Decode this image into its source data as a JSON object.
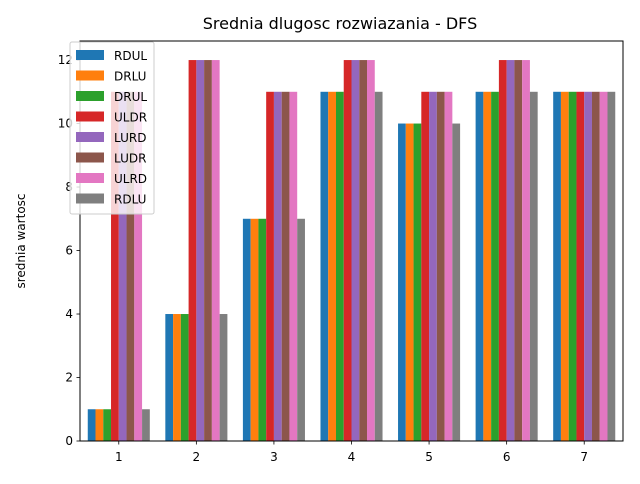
{
  "chart_data": {
    "type": "bar",
    "title": "Srednia dlugosc rozwiazania - DFS",
    "xlabel": "",
    "ylabel": "srednia wartosc",
    "categories": [
      "1",
      "2",
      "3",
      "4",
      "5",
      "6",
      "7"
    ],
    "ylim": [
      0,
      12.6
    ],
    "yticks": [
      0,
      2,
      4,
      6,
      8,
      10,
      12
    ],
    "grid": false,
    "legend_position": "top-left",
    "series": [
      {
        "name": "RDUL",
        "color": "#1f77b4",
        "values": [
          1,
          4,
          7,
          11,
          10,
          11,
          11
        ]
      },
      {
        "name": "DRLU",
        "color": "#ff7f0e",
        "values": [
          1,
          4,
          7,
          11,
          10,
          11,
          11
        ]
      },
      {
        "name": "DRUL",
        "color": "#2ca02c",
        "values": [
          1,
          4,
          7,
          11,
          10,
          11,
          11
        ]
      },
      {
        "name": "ULDR",
        "color": "#d62728",
        "values": [
          11,
          12,
          11,
          12,
          11,
          12,
          11
        ]
      },
      {
        "name": "LURD",
        "color": "#9467bd",
        "values": [
          11,
          12,
          11,
          12,
          11,
          12,
          11
        ]
      },
      {
        "name": "LUDR",
        "color": "#8c564b",
        "values": [
          11,
          12,
          11,
          12,
          11,
          12,
          11
        ]
      },
      {
        "name": "ULRD",
        "color": "#e377c2",
        "values": [
          11,
          12,
          11,
          12,
          11,
          12,
          11
        ]
      },
      {
        "name": "RDLU",
        "color": "#7f7f7f",
        "values": [
          1,
          4,
          7,
          11,
          10,
          11,
          11
        ]
      }
    ]
  }
}
